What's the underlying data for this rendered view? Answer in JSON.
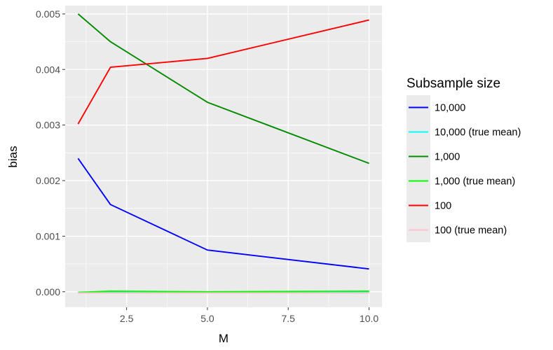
{
  "chart_data": {
    "type": "line",
    "title": "",
    "xlabel": "M",
    "ylabel": "bias",
    "xlim": [
      0.6,
      10.4
    ],
    "ylim": [
      -0.00028,
      0.00515
    ],
    "x_ticks": [
      2.5,
      5.0,
      7.5,
      10.0
    ],
    "x_tick_labels": [
      "2.5",
      "5.0",
      "7.5",
      "10.0"
    ],
    "y_ticks": [
      0.0,
      0.001,
      0.002,
      0.003,
      0.004,
      0.005
    ],
    "y_tick_labels": [
      "0.000",
      "0.001",
      "0.002",
      "0.003",
      "0.004",
      "0.005"
    ],
    "grid": true,
    "legend_title": "Subsample size",
    "legend_position": "right",
    "series": [
      {
        "name": "10,000",
        "color": "#0000ff",
        "x": [
          1,
          2,
          5,
          10
        ],
        "y": [
          0.0024,
          0.00157,
          0.00075,
          0.00041
        ]
      },
      {
        "name": "10,000 (true mean)",
        "color": "#00ffff",
        "x": [
          1,
          2,
          5,
          10
        ],
        "y": [
          -2e-05,
          0.0,
          -1e-05,
          0.0
        ]
      },
      {
        "name": "1,000",
        "color": "#008b00",
        "x": [
          1,
          2,
          5,
          10
        ],
        "y": [
          0.005,
          0.0045,
          0.00341,
          0.00231
        ]
      },
      {
        "name": "1,000 (true mean)",
        "color": "#00ff00",
        "x": [
          1,
          2,
          5,
          10
        ],
        "y": [
          -1e-05,
          1e-05,
          0.0,
          1e-05
        ]
      },
      {
        "name": "100",
        "color": "#ff0000",
        "x": [
          1,
          2,
          5,
          10
        ],
        "y": [
          0.00302,
          0.00404,
          0.0042,
          0.00489
        ]
      },
      {
        "name": "100 (true mean)",
        "color": "#ffc0cb",
        "x": [
          1,
          2,
          5,
          10
        ],
        "y": [
          -2e-05,
          -2e-05,
          -2e-05,
          -2e-05
        ]
      }
    ]
  }
}
